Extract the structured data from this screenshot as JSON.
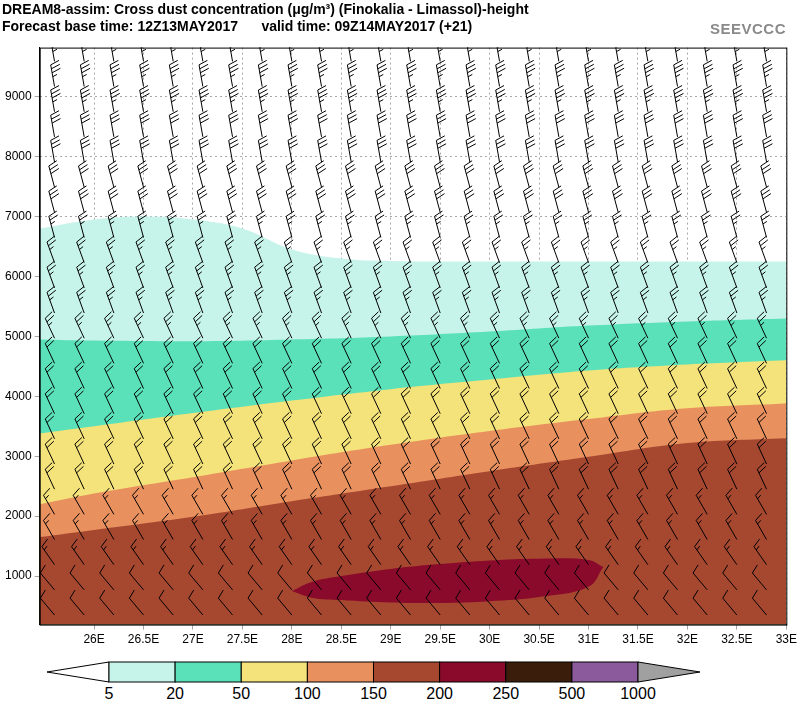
{
  "chart_data": {
    "type": "contour",
    "title": "DREAM8-assim: Cross dust concentration (μg/m³) (Finokalia - Limassol)-height",
    "subtitle": "Forecast base time: 12Z13MAY2017      valid time: 09Z14MAY2017 (+21)",
    "logo": "SEEVCCC",
    "xlim": [
      25.45,
      33
    ],
    "xticks": [
      {
        "value": 26,
        "label": "26E"
      },
      {
        "value": 26.5,
        "label": "26.5E"
      },
      {
        "value": 27,
        "label": "27E"
      },
      {
        "value": 27.5,
        "label": "27.5E"
      },
      {
        "value": 28,
        "label": "28E"
      },
      {
        "value": 28.5,
        "label": "28.5E"
      },
      {
        "value": 29,
        "label": "29E"
      },
      {
        "value": 29.5,
        "label": "29.5E"
      },
      {
        "value": 30,
        "label": "30E"
      },
      {
        "value": 30.5,
        "label": "30.5E"
      },
      {
        "value": 31,
        "label": "31E"
      },
      {
        "value": 31.5,
        "label": "31.5E"
      },
      {
        "value": 32,
        "label": "32E"
      },
      {
        "value": 32.5,
        "label": "32.5E"
      },
      {
        "value": 33,
        "label": "33E"
      }
    ],
    "ylim": [
      190,
      9820
    ],
    "yticks": [
      1000,
      2000,
      3000,
      4000,
      5000,
      6000,
      7000,
      8000,
      9000
    ],
    "grid": true,
    "colorbar": {
      "ticks": [
        5,
        20,
        50,
        100,
        150,
        200,
        250,
        500,
        1000
      ],
      "colors": [
        "#ffffff",
        "#c6f3ea",
        "#5be1b9",
        "#f4e27a",
        "#e9905f",
        "#a64730",
        "#8a0a2c",
        "#3a1d0b",
        "#8a5a9c",
        "#a0a0a0"
      ]
    },
    "contours": [
      {
        "level": 5,
        "x": [
          25.45,
          26,
          26.5,
          27,
          27.5,
          28,
          28.5,
          29,
          30,
          31,
          32,
          33
        ],
        "top": [
          6800,
          6950,
          7000,
          6950,
          6800,
          6450,
          6300,
          6260,
          6250,
          6250,
          6250,
          6250
        ]
      },
      {
        "level": 20,
        "x": [
          25.45,
          26,
          27,
          28,
          29,
          30,
          31,
          32,
          33
        ],
        "top": [
          4950,
          4930,
          4920,
          4950,
          5000,
          5080,
          5180,
          5250,
          5300
        ]
      },
      {
        "level": 50,
        "x": [
          25.45,
          26,
          27,
          28,
          29,
          30,
          31,
          32,
          33
        ],
        "top": [
          3380,
          3500,
          3720,
          3930,
          4120,
          4280,
          4430,
          4530,
          4600
        ]
      },
      {
        "level": 100,
        "x": [
          25.45,
          26,
          27,
          28,
          29,
          30,
          31,
          32,
          33
        ],
        "top": [
          2200,
          2380,
          2650,
          2930,
          3190,
          3420,
          3620,
          3800,
          3880
        ]
      },
      {
        "level": 150,
        "x": [
          25.45,
          26,
          27,
          28,
          29,
          30,
          31,
          32,
          33
        ],
        "top": [
          1650,
          1770,
          1990,
          2250,
          2500,
          2750,
          2990,
          3220,
          3300
        ]
      },
      {
        "level": 200,
        "x": [
          28.0,
          28.2,
          28.5,
          29,
          29.5,
          30,
          30.5,
          31,
          31.15
        ],
        "top": [
          750,
          900,
          1000,
          1120,
          1200,
          1260,
          1290,
          1270,
          1150
        ],
        "bottom": [
          750,
          640,
          600,
          560,
          550,
          580,
          650,
          820,
          1150
        ]
      }
    ],
    "wind": {
      "x": [
        25.6,
        25.9,
        26.2,
        26.5,
        26.8,
        27.1,
        27.4,
        27.7,
        28.0,
        28.3,
        28.6,
        28.9,
        29.2,
        29.5,
        29.8,
        30.1,
        30.4,
        30.7,
        31.0,
        31.3,
        31.6,
        31.9,
        32.2,
        32.5,
        32.8
      ],
      "heights": [
        9590,
        9170,
        8750,
        8330,
        7910,
        7490,
        7070,
        6650,
        6230,
        5810,
        5390,
        4970,
        4550,
        4130,
        3710,
        3290,
        2870,
        2450,
        2030,
        1610,
        1190,
        770,
        350
      ],
      "direction": [
        350,
        350,
        350,
        350,
        350,
        345,
        345,
        345,
        340,
        340,
        340,
        335,
        335,
        335,
        335,
        335,
        335,
        335,
        330,
        330,
        325,
        320,
        320
      ],
      "speed": [
        35,
        35,
        35,
        30,
        30,
        30,
        30,
        25,
        25,
        25,
        25,
        25,
        20,
        20,
        20,
        20,
        20,
        20,
        15,
        15,
        15,
        10,
        10
      ]
    }
  }
}
